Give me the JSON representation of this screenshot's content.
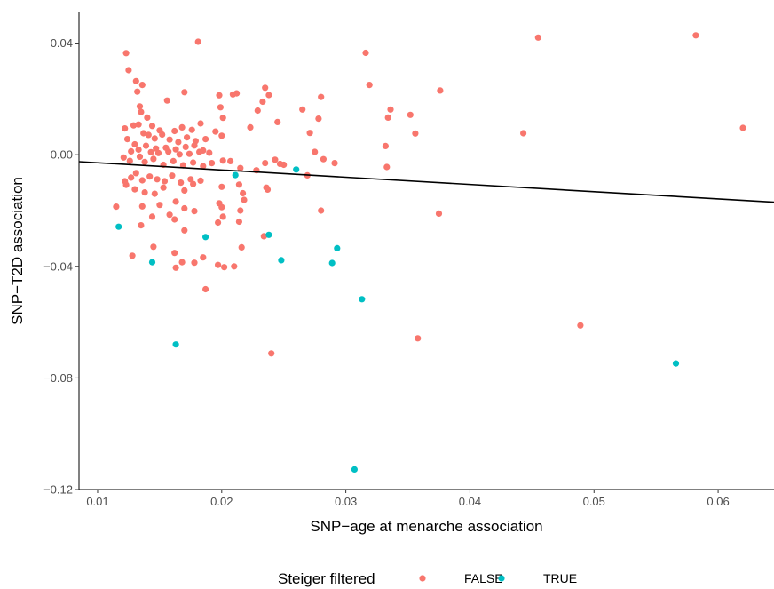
{
  "chart_data": {
    "type": "scatter",
    "title": "",
    "xlabel": "SNP−age at menarche association",
    "ylabel": "SNP−T2D association",
    "xlim": [
      0.0085,
      0.0645
    ],
    "ylim": [
      -0.12,
      0.051
    ],
    "x_ticks": [
      0.01,
      0.02,
      0.03,
      0.04,
      0.05,
      0.06
    ],
    "x_tick_labels": [
      "0.01",
      "0.02",
      "0.03",
      "0.04",
      "0.05",
      "0.06"
    ],
    "y_ticks": [
      0.04,
      0.0,
      -0.04,
      -0.08,
      -0.12
    ],
    "y_tick_labels": [
      "0.04",
      "0.00",
      "−0.04",
      "−0.08",
      "−0.12"
    ],
    "grid": false,
    "legend": {
      "title": "Steiger filtered",
      "position": "bottom",
      "entries": [
        {
          "label": "FALSE",
          "color": "#F8766D"
        },
        {
          "label": "TRUE",
          "color": "#00BFC4"
        }
      ]
    },
    "regression_line": {
      "x": [
        0.0085,
        0.0645
      ],
      "y": [
        -0.0025,
        -0.017
      ],
      "color": "#000000"
    },
    "series": [
      {
        "name": "FALSE",
        "color": "#F8766D",
        "points": [
          [
            0.0123,
            0.0364
          ],
          [
            0.0181,
            0.0405
          ],
          [
            0.0125,
            0.0303
          ],
          [
            0.0131,
            0.0264
          ],
          [
            0.0136,
            0.025
          ],
          [
            0.0132,
            0.0226
          ],
          [
            0.0156,
            0.0194
          ],
          [
            0.0134,
            0.0173
          ],
          [
            0.017,
            0.0224
          ],
          [
            0.0198,
            0.0213
          ],
          [
            0.0209,
            0.0216
          ],
          [
            0.0212,
            0.022
          ],
          [
            0.0199,
            0.017
          ],
          [
            0.0201,
            0.0132
          ],
          [
            0.0135,
            0.0153
          ],
          [
            0.014,
            0.0133
          ],
          [
            0.0129,
            0.0105
          ],
          [
            0.0144,
            0.0103
          ],
          [
            0.015,
            0.0087
          ],
          [
            0.0162,
            0.0085
          ],
          [
            0.0168,
            0.0098
          ],
          [
            0.0176,
            0.0089
          ],
          [
            0.0183,
            0.0112
          ],
          [
            0.0195,
            0.0083
          ],
          [
            0.0223,
            0.0098
          ],
          [
            0.02,
            0.0068
          ],
          [
            0.0122,
            0.0094
          ],
          [
            0.0133,
            0.0108
          ],
          [
            0.0137,
            0.0077
          ],
          [
            0.0141,
            0.0071
          ],
          [
            0.0146,
            0.0058
          ],
          [
            0.0152,
            0.0072
          ],
          [
            0.0158,
            0.0054
          ],
          [
            0.0165,
            0.0045
          ],
          [
            0.0172,
            0.0062
          ],
          [
            0.0179,
            0.0049
          ],
          [
            0.0187,
            0.0056
          ],
          [
            0.0124,
            0.0056
          ],
          [
            0.013,
            0.0037
          ],
          [
            0.0139,
            0.0032
          ],
          [
            0.0147,
            0.0022
          ],
          [
            0.0155,
            0.0025
          ],
          [
            0.0163,
            0.0019
          ],
          [
            0.0171,
            0.0028
          ],
          [
            0.0178,
            0.0033
          ],
          [
            0.0185,
            0.0015
          ],
          [
            0.0127,
            0.0012
          ],
          [
            0.0133,
            0.0018
          ],
          [
            0.0143,
            0.0009
          ],
          [
            0.0149,
            0.0006
          ],
          [
            0.0157,
            0.0011
          ],
          [
            0.0166,
            0.0001
          ],
          [
            0.0174,
            0.0003
          ],
          [
            0.0182,
            0.001
          ],
          [
            0.019,
            0.0007
          ],
          [
            0.0121,
            -0.001
          ],
          [
            0.0126,
            -0.0022
          ],
          [
            0.0134,
            -0.0007
          ],
          [
            0.0138,
            -0.0026
          ],
          [
            0.0145,
            -0.0015
          ],
          [
            0.0153,
            -0.0036
          ],
          [
            0.0161,
            -0.0023
          ],
          [
            0.0169,
            -0.0038
          ],
          [
            0.0177,
            -0.0028
          ],
          [
            0.0185,
            -0.0041
          ],
          [
            0.0192,
            -0.003
          ],
          [
            0.0201,
            -0.0021
          ],
          [
            0.0207,
            -0.0023
          ],
          [
            0.0215,
            -0.0048
          ],
          [
            0.0228,
            -0.0056
          ],
          [
            0.0235,
            -0.003
          ],
          [
            0.0243,
            -0.0018
          ],
          [
            0.0247,
            -0.0033
          ],
          [
            0.025,
            -0.0036
          ],
          [
            0.0269,
            -0.0074
          ],
          [
            0.0122,
            -0.0095
          ],
          [
            0.0127,
            -0.0082
          ],
          [
            0.0131,
            -0.0066
          ],
          [
            0.0136,
            -0.0092
          ],
          [
            0.0142,
            -0.0078
          ],
          [
            0.0148,
            -0.0088
          ],
          [
            0.0154,
            -0.0095
          ],
          [
            0.016,
            -0.0075
          ],
          [
            0.0167,
            -0.01
          ],
          [
            0.0175,
            -0.0088
          ],
          [
            0.0183,
            -0.0093
          ],
          [
            0.0123,
            -0.0108
          ],
          [
            0.013,
            -0.0124
          ],
          [
            0.0138,
            -0.0135
          ],
          [
            0.0146,
            -0.014
          ],
          [
            0.0153,
            -0.0118
          ],
          [
            0.017,
            -0.0128
          ],
          [
            0.0177,
            -0.0105
          ],
          [
            0.02,
            -0.0115
          ],
          [
            0.0214,
            -0.0107
          ],
          [
            0.0217,
            -0.0138
          ],
          [
            0.0236,
            -0.0118
          ],
          [
            0.0237,
            -0.0125
          ],
          [
            0.0136,
            -0.0185
          ],
          [
            0.015,
            -0.018
          ],
          [
            0.0163,
            -0.0168
          ],
          [
            0.017,
            -0.0192
          ],
          [
            0.0178,
            -0.0202
          ],
          [
            0.0198,
            -0.0174
          ],
          [
            0.02,
            -0.0188
          ],
          [
            0.0218,
            -0.0162
          ],
          [
            0.0215,
            -0.02
          ],
          [
            0.0144,
            -0.0222
          ],
          [
            0.0158,
            -0.0215
          ],
          [
            0.0135,
            -0.0253
          ],
          [
            0.0162,
            -0.0232
          ],
          [
            0.0197,
            -0.0243
          ],
          [
            0.0201,
            -0.0222
          ],
          [
            0.0214,
            -0.024
          ],
          [
            0.017,
            -0.0271
          ],
          [
            0.0234,
            -0.0292
          ],
          [
            0.0216,
            -0.0332
          ],
          [
            0.0128,
            -0.0362
          ],
          [
            0.0145,
            -0.033
          ],
          [
            0.0162,
            -0.0352
          ],
          [
            0.0168,
            -0.0385
          ],
          [
            0.0178,
            -0.0387
          ],
          [
            0.0185,
            -0.0368
          ],
          [
            0.0197,
            -0.0395
          ],
          [
            0.0202,
            -0.0403
          ],
          [
            0.021,
            -0.04
          ],
          [
            0.0163,
            -0.0405
          ],
          [
            0.0187,
            -0.0482
          ],
          [
            0.024,
            -0.0712
          ],
          [
            0.0115,
            -0.0186
          ],
          [
            0.0235,
            0.024
          ],
          [
            0.0238,
            0.0214
          ],
          [
            0.0233,
            0.019
          ],
          [
            0.0229,
            0.0158
          ],
          [
            0.0245,
            0.0117
          ],
          [
            0.028,
            0.0207
          ],
          [
            0.0265,
            0.0162
          ],
          [
            0.0278,
            0.0129
          ],
          [
            0.0271,
            0.0078
          ],
          [
            0.0275,
            0.001
          ],
          [
            0.0282,
            -0.0016
          ],
          [
            0.0291,
            -0.003
          ],
          [
            0.028,
            -0.02
          ],
          [
            0.0316,
            0.0365
          ],
          [
            0.0319,
            0.025
          ],
          [
            0.0376,
            0.023
          ],
          [
            0.0336,
            0.0162
          ],
          [
            0.0334,
            0.0133
          ],
          [
            0.0352,
            0.0143
          ],
          [
            0.0356,
            0.0076
          ],
          [
            0.0332,
            0.0031
          ],
          [
            0.0333,
            -0.0044
          ],
          [
            0.0375,
            -0.0211
          ],
          [
            0.0358,
            -0.0658
          ],
          [
            0.0455,
            0.042
          ],
          [
            0.0582,
            0.0428
          ],
          [
            0.0443,
            0.0077
          ],
          [
            0.062,
            0.0096
          ],
          [
            0.0489,
            -0.0612
          ]
        ]
      },
      {
        "name": "TRUE",
        "color": "#00BFC4",
        "points": [
          [
            0.0117,
            -0.0258
          ],
          [
            0.0144,
            -0.0385
          ],
          [
            0.0163,
            -0.068
          ],
          [
            0.0187,
            -0.0295
          ],
          [
            0.0211,
            -0.0073
          ],
          [
            0.0238,
            -0.0287
          ],
          [
            0.0248,
            -0.0378
          ],
          [
            0.026,
            -0.0053
          ],
          [
            0.0289,
            -0.0388
          ],
          [
            0.0293,
            -0.0335
          ],
          [
            0.0313,
            -0.0518
          ],
          [
            0.0307,
            -0.1128
          ],
          [
            0.0566,
            -0.0748
          ]
        ]
      }
    ]
  }
}
